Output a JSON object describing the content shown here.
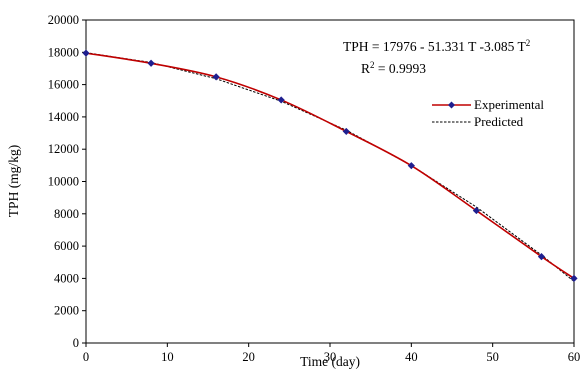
{
  "chart_data": {
    "type": "line",
    "xlabel": "Time (day)",
    "ylabel": "TPH (mg/kg)",
    "xlim": [
      0,
      60
    ],
    "ylim": [
      0,
      20000
    ],
    "x_ticks": [
      0,
      10,
      20,
      30,
      40,
      50,
      60
    ],
    "y_ticks": [
      0,
      2000,
      4000,
      6000,
      8000,
      10000,
      12000,
      14000,
      16000,
      18000,
      20000
    ],
    "grid": false,
    "legend_position": "right",
    "series": [
      {
        "name": "Experimental",
        "style": "solid-line-with-diamond-markers",
        "line_color": "#c00000",
        "marker_color": "#1f1f8f",
        "x": [
          0,
          8,
          16,
          24,
          32,
          40,
          48,
          56,
          60
        ],
        "y": [
          17950,
          17320,
          16480,
          15050,
          13100,
          10980,
          8200,
          5350,
          4000
        ]
      },
      {
        "name": "Predicted",
        "style": "dashed-line",
        "line_color": "#000000",
        "x": [
          0,
          8,
          16,
          24,
          32,
          40,
          48,
          56,
          60
        ],
        "y": [
          17976,
          17368,
          16365,
          14969,
          13180,
          10995,
          8419,
          5447,
          3815
        ]
      }
    ],
    "annotations": {
      "equation_prefix": "TPH = 17976 - 51.331 T -3.085 T",
      "equation_sup": "2",
      "r2_prefix": "R",
      "r2_sup": "2",
      "r2_suffix": " = 0.9993"
    }
  }
}
